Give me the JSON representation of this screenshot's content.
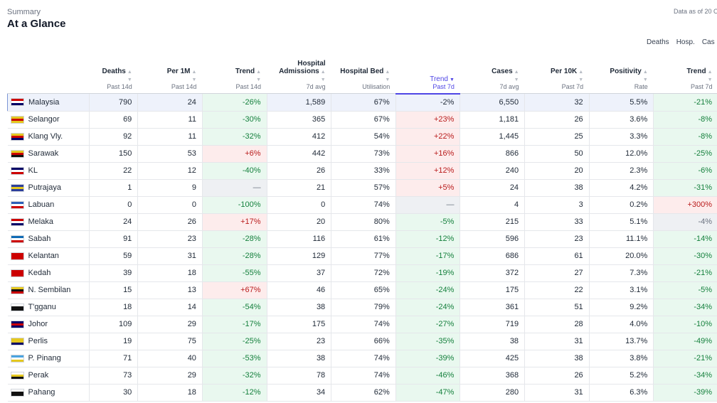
{
  "header": {
    "eyebrow": "Summary",
    "title": "At a Glance",
    "as_of": "Data as of 20 Oc"
  },
  "tabs": [
    "Deaths",
    "Hosp.",
    "Cas"
  ],
  "columns": [
    {
      "title": "Deaths",
      "sub": "Past 14d"
    },
    {
      "title": "Per 1M",
      "sub": "Past 14d"
    },
    {
      "title": "Trend",
      "sub": "Past 14d"
    },
    {
      "title": "Hospital Admissions",
      "sub": "7d avg"
    },
    {
      "title": "Hospital Bed",
      "sub": "Utilisation"
    },
    {
      "title": "Trend",
      "sub": "Past 7d",
      "active": true
    },
    {
      "title": "Cases",
      "sub": "7d avg"
    },
    {
      "title": "Per 10K",
      "sub": "Past 7d"
    },
    {
      "title": "Positivity",
      "sub": "Rate"
    },
    {
      "title": "Trend",
      "sub": "Past 7d"
    }
  ],
  "rows": [
    {
      "state": "Malaysia",
      "flag": [
        "#cc0001",
        "#ffffff",
        "#010066"
      ],
      "national": true,
      "cells": [
        "790",
        "24",
        "-26%",
        "1,589",
        "67%",
        "-2%",
        "6,550",
        "32",
        "5.5%",
        "-21%"
      ],
      "tones": [
        "",
        "",
        "dn",
        "",
        "",
        "",
        "",
        "",
        "",
        "dn"
      ]
    },
    {
      "state": "Selangor",
      "flag": [
        "#e5c81f",
        "#cc0001",
        "#e5c81f"
      ],
      "cells": [
        "69",
        "11",
        "-30%",
        "365",
        "67%",
        "+23%",
        "1,181",
        "26",
        "3.6%",
        "-8%"
      ],
      "tones": [
        "",
        "",
        "dn",
        "",
        "",
        "up",
        "",
        "",
        "",
        "dn"
      ]
    },
    {
      "state": "Klang Vly.",
      "flag": [
        "#e5c81f",
        "#cc0001",
        "#010066"
      ],
      "cells": [
        "92",
        "11",
        "-32%",
        "412",
        "54%",
        "+22%",
        "1,445",
        "25",
        "3.3%",
        "-8%"
      ],
      "tones": [
        "",
        "",
        "dn",
        "",
        "",
        "up",
        "",
        "",
        "",
        "dn"
      ]
    },
    {
      "state": "Sarawak",
      "flag": [
        "#e5c81f",
        "#cc0001",
        "#111111"
      ],
      "cells": [
        "150",
        "53",
        "+6%",
        "442",
        "73%",
        "+16%",
        "866",
        "50",
        "12.0%",
        "-25%"
      ],
      "tones": [
        "",
        "",
        "up",
        "",
        "",
        "up",
        "",
        "",
        "",
        "dn"
      ]
    },
    {
      "state": "KL",
      "flag": [
        "#010066",
        "#ffffff",
        "#cc0001"
      ],
      "cells": [
        "22",
        "12",
        "-40%",
        "26",
        "33%",
        "+12%",
        "240",
        "20",
        "2.3%",
        "-6%"
      ],
      "tones": [
        "",
        "",
        "dn",
        "",
        "",
        "up",
        "",
        "",
        "",
        "dn"
      ]
    },
    {
      "state": "Putrajaya",
      "flag": [
        "#2c3e9a",
        "#e5c81f",
        "#2c3e9a"
      ],
      "cells": [
        "1",
        "9",
        "—",
        "21",
        "57%",
        "+5%",
        "24",
        "38",
        "4.2%",
        "-31%"
      ],
      "tones": [
        "",
        "",
        "na",
        "",
        "",
        "up",
        "",
        "",
        "",
        "dn"
      ]
    },
    {
      "state": "Labuan",
      "flag": [
        "#2c5fb8",
        "#ffffff",
        "#cc0001"
      ],
      "cells": [
        "0",
        "0",
        "-100%",
        "0",
        "74%",
        "—",
        "4",
        "3",
        "0.2%",
        "+300%"
      ],
      "tones": [
        "",
        "",
        "dn",
        "",
        "",
        "na",
        "",
        "",
        "",
        "up"
      ]
    },
    {
      "state": "Melaka",
      "flag": [
        "#cc0001",
        "#ffffff",
        "#010066"
      ],
      "cells": [
        "24",
        "26",
        "+17%",
        "20",
        "80%",
        "-5%",
        "215",
        "33",
        "5.1%",
        "-4%"
      ],
      "tones": [
        "",
        "",
        "up",
        "",
        "",
        "dn",
        "",
        "",
        "",
        "na"
      ]
    },
    {
      "state": "Sabah",
      "flag": [
        "#0f6bb5",
        "#ffffff",
        "#cc0001"
      ],
      "cells": [
        "91",
        "23",
        "-28%",
        "116",
        "61%",
        "-12%",
        "596",
        "23",
        "11.1%",
        "-14%"
      ],
      "tones": [
        "",
        "",
        "dn",
        "",
        "",
        "dn",
        "",
        "",
        "",
        "dn"
      ]
    },
    {
      "state": "Kelantan",
      "flag": [
        "#cc0001",
        "#cc0001",
        "#cc0001"
      ],
      "cells": [
        "59",
        "31",
        "-28%",
        "129",
        "77%",
        "-17%",
        "686",
        "61",
        "20.0%",
        "-30%"
      ],
      "tones": [
        "",
        "",
        "dn",
        "",
        "",
        "dn",
        "",
        "",
        "",
        "dn"
      ]
    },
    {
      "state": "Kedah",
      "flag": [
        "#cc0001",
        "#cc0001",
        "#cc0001"
      ],
      "cells": [
        "39",
        "18",
        "-55%",
        "37",
        "72%",
        "-19%",
        "372",
        "27",
        "7.3%",
        "-21%"
      ],
      "tones": [
        "",
        "",
        "dn",
        "",
        "",
        "dn",
        "",
        "",
        "",
        "dn"
      ]
    },
    {
      "state": "N. Sembilan",
      "flag": [
        "#e5c81f",
        "#111111",
        "#cc0001"
      ],
      "cells": [
        "15",
        "13",
        "+67%",
        "46",
        "65%",
        "-24%",
        "175",
        "22",
        "3.1%",
        "-5%"
      ],
      "tones": [
        "",
        "",
        "up",
        "",
        "",
        "dn",
        "",
        "",
        "",
        "dn"
      ]
    },
    {
      "state": "T'gganu",
      "flag": [
        "#ffffff",
        "#111111",
        "#111111"
      ],
      "cells": [
        "18",
        "14",
        "-54%",
        "38",
        "79%",
        "-24%",
        "361",
        "51",
        "9.2%",
        "-34%"
      ],
      "tones": [
        "",
        "",
        "dn",
        "",
        "",
        "dn",
        "",
        "",
        "",
        "dn"
      ]
    },
    {
      "state": "Johor",
      "flag": [
        "#010066",
        "#cc0001",
        "#010066"
      ],
      "cells": [
        "109",
        "29",
        "-17%",
        "175",
        "74%",
        "-27%",
        "719",
        "28",
        "4.0%",
        "-10%"
      ],
      "tones": [
        "",
        "",
        "dn",
        "",
        "",
        "dn",
        "",
        "",
        "",
        "dn"
      ]
    },
    {
      "state": "Perlis",
      "flag": [
        "#e5c81f",
        "#e5c81f",
        "#010066"
      ],
      "cells": [
        "19",
        "75",
        "-25%",
        "23",
        "66%",
        "-35%",
        "38",
        "31",
        "13.7%",
        "-49%"
      ],
      "tones": [
        "",
        "",
        "dn",
        "",
        "",
        "dn",
        "",
        "",
        "",
        "dn"
      ]
    },
    {
      "state": "P. Pinang",
      "flag": [
        "#4aa3df",
        "#ffffff",
        "#e5c81f"
      ],
      "cells": [
        "71",
        "40",
        "-53%",
        "38",
        "74%",
        "-39%",
        "425",
        "38",
        "3.8%",
        "-21%"
      ],
      "tones": [
        "",
        "",
        "dn",
        "",
        "",
        "dn",
        "",
        "",
        "",
        "dn"
      ]
    },
    {
      "state": "Perak",
      "flag": [
        "#ffffff",
        "#e5c81f",
        "#111111"
      ],
      "cells": [
        "73",
        "29",
        "-32%",
        "78",
        "74%",
        "-46%",
        "368",
        "26",
        "5.2%",
        "-34%"
      ],
      "tones": [
        "",
        "",
        "dn",
        "",
        "",
        "dn",
        "",
        "",
        "",
        "dn"
      ]
    },
    {
      "state": "Pahang",
      "flag": [
        "#ffffff",
        "#111111",
        "#111111"
      ],
      "cells": [
        "30",
        "18",
        "-12%",
        "34",
        "62%",
        "-47%",
        "280",
        "31",
        "6.3%",
        "-39%"
      ],
      "tones": [
        "",
        "",
        "dn",
        "",
        "",
        "dn",
        "",
        "",
        "",
        "dn"
      ]
    }
  ]
}
